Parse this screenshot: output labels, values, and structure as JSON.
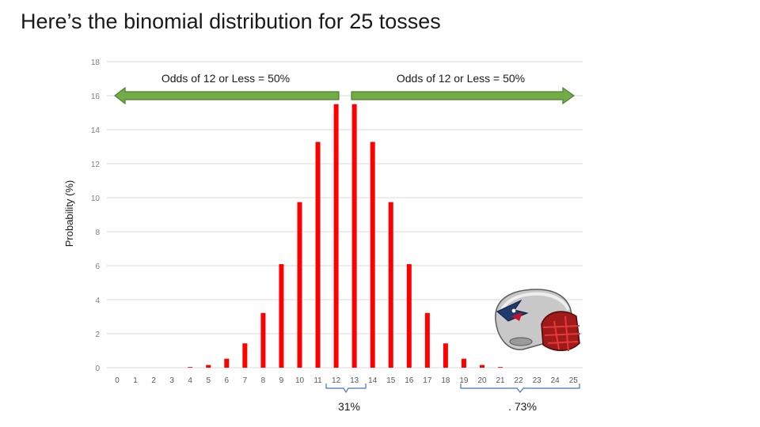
{
  "slide": {
    "title": "Here’s the binomial distribution for 25 tosses"
  },
  "chart_data": {
    "type": "bar",
    "title": "",
    "xlabel": "",
    "ylabel": "Probability (%)",
    "ylim": [
      0,
      18
    ],
    "yticks": [
      0,
      2,
      4,
      6,
      8,
      10,
      12,
      14,
      16,
      18
    ],
    "grid": true,
    "categories": [
      "0",
      "1",
      "2",
      "3",
      "4",
      "5",
      "6",
      "7",
      "8",
      "9",
      "10",
      "11",
      "12",
      "13",
      "14",
      "15",
      "16",
      "17",
      "18",
      "19",
      "20",
      "21",
      "22",
      "23",
      "24",
      "25"
    ],
    "values": [
      0.0,
      0.0,
      0.0,
      0.0,
      0.04,
      0.16,
      0.53,
      1.43,
      3.22,
      6.09,
      9.74,
      13.28,
      15.5,
      15.5,
      13.28,
      9.74,
      6.09,
      3.22,
      1.43,
      0.53,
      0.16,
      0.04,
      0.0,
      0.0,
      0.0,
      0.0
    ],
    "bar_color": "#ff0000",
    "arrow_color": "#70ad47",
    "annotations": {
      "left_arrow_label": "Odds of 12 or Less = 50%",
      "right_arrow_label": "Odds of 12 or Less = 50%",
      "center_bracket_label": "31%",
      "tail_bracket_label": ". 73%"
    }
  },
  "helmet": {
    "icon": "football-helmet-icon"
  }
}
